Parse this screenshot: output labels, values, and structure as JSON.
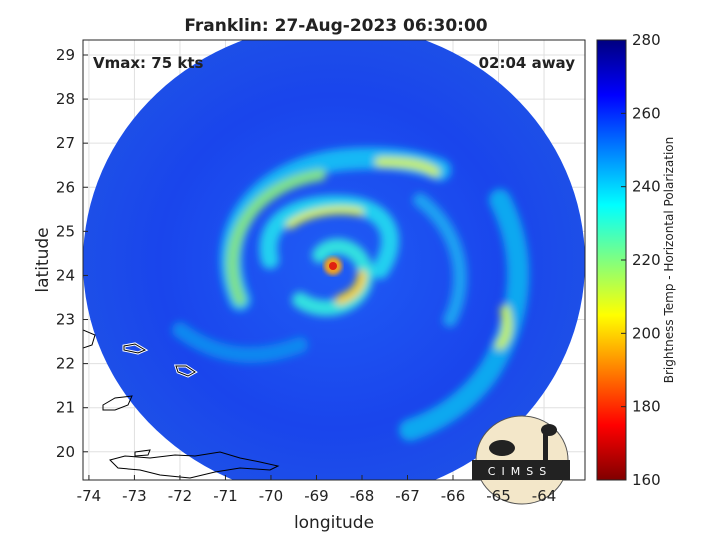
{
  "chart_data": {
    "type": "image",
    "title": "Franklin: 27-Aug-2023 06:30:00",
    "annotations": {
      "left": "Vmax: 75 kts",
      "right": "02:04 away"
    },
    "xlabel": "longitude",
    "ylabel": "latitude",
    "xlim": [
      -74.13,
      -63.1
    ],
    "ylim": [
      19.36,
      29.34
    ],
    "xticks": [
      -74,
      -73,
      -72,
      -71,
      -70,
      -69,
      -68,
      -67,
      -66,
      -65,
      -64
    ],
    "yticks": [
      20,
      21,
      22,
      23,
      24,
      25,
      26,
      27,
      28,
      29
    ],
    "grid": true,
    "colorbar": {
      "label": "Brightness Temp - Horizontal Polarization",
      "clim": [
        160,
        280
      ],
      "ticks": [
        160,
        180,
        200,
        220,
        240,
        260,
        280
      ],
      "colormap": [
        "#800000",
        "#ff0000",
        "#ff8000",
        "#ffff00",
        "#80ff80",
        "#00ffff",
        "#0080ff",
        "#0000ff",
        "#000080"
      ]
    },
    "logo": "CIMSS"
  }
}
